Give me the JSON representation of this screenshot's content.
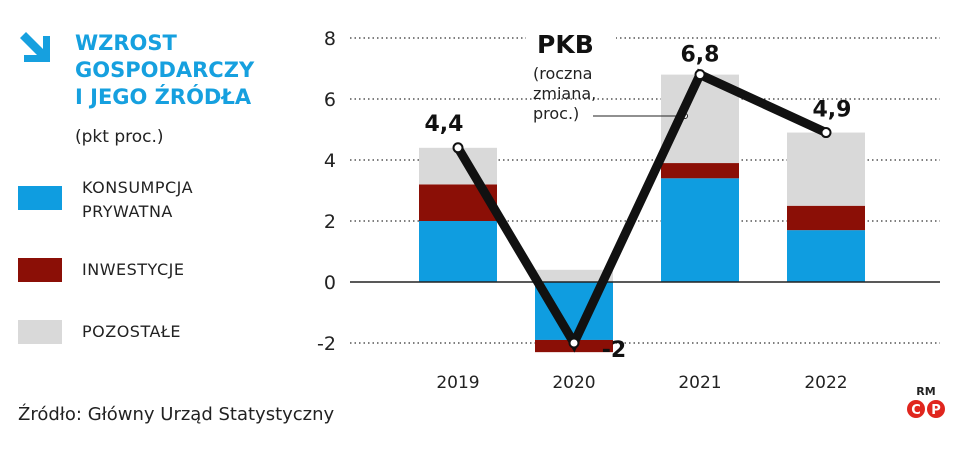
{
  "header": {
    "title_lines": [
      "WZROST",
      "GOSPODARCZY",
      "I JEGO ŹRÓDŁA"
    ],
    "units": "(pkt proc.)"
  },
  "legend": [
    {
      "label_lines": [
        "KONSUMPCJA",
        "PRYWATNA"
      ],
      "color": "#0f9de0"
    },
    {
      "label_lines": [
        "INWESTYCJE"
      ],
      "color": "#8b0f06"
    },
    {
      "label_lines": [
        "POZOSTAŁE"
      ],
      "color": "#d9d9d9"
    }
  ],
  "annotation": {
    "title": "PKB",
    "sub_lines": [
      "(roczna",
      "zmiana,",
      "proc.)"
    ]
  },
  "source": "Źródło: Główny Urząd Statystyczny",
  "credit": {
    "initials": "RM",
    "symbol_c": "C",
    "symbol_p": "P",
    "color": "#e0261e"
  },
  "chart_data": {
    "type": "bar",
    "stacked": true,
    "title": "WZROST GOSPODARCZY I JEGO ŹRÓDŁA",
    "ylabel": "(pkt proc.)",
    "categories": [
      "2019",
      "2020",
      "2021",
      "2022"
    ],
    "ylim": [
      -2.5,
      8
    ],
    "yticks": [
      8,
      6,
      4,
      2,
      0,
      -2
    ],
    "ytick_labels": [
      "8",
      "6",
      "4",
      "2",
      "0",
      "-2"
    ],
    "series": [
      {
        "name": "KONSUMPCJA PRYWATNA",
        "color": "#0f9de0",
        "values": [
          2.0,
          -1.9,
          3.4,
          1.7
        ]
      },
      {
        "name": "INWESTYCJE",
        "color": "#8b0f06",
        "values": [
          1.2,
          -0.4,
          0.5,
          0.8
        ]
      },
      {
        "name": "POZOSTAŁE",
        "color": "#d9d9d9",
        "values": [
          1.2,
          0.4,
          2.9,
          2.4
        ]
      }
    ],
    "line": {
      "name": "PKB (roczna zmiana, proc.)",
      "color": "#111111",
      "values": [
        4.4,
        -2.0,
        6.8,
        4.9
      ],
      "labels": [
        "4,4",
        "-2",
        "6,8",
        "4,9"
      ]
    }
  }
}
